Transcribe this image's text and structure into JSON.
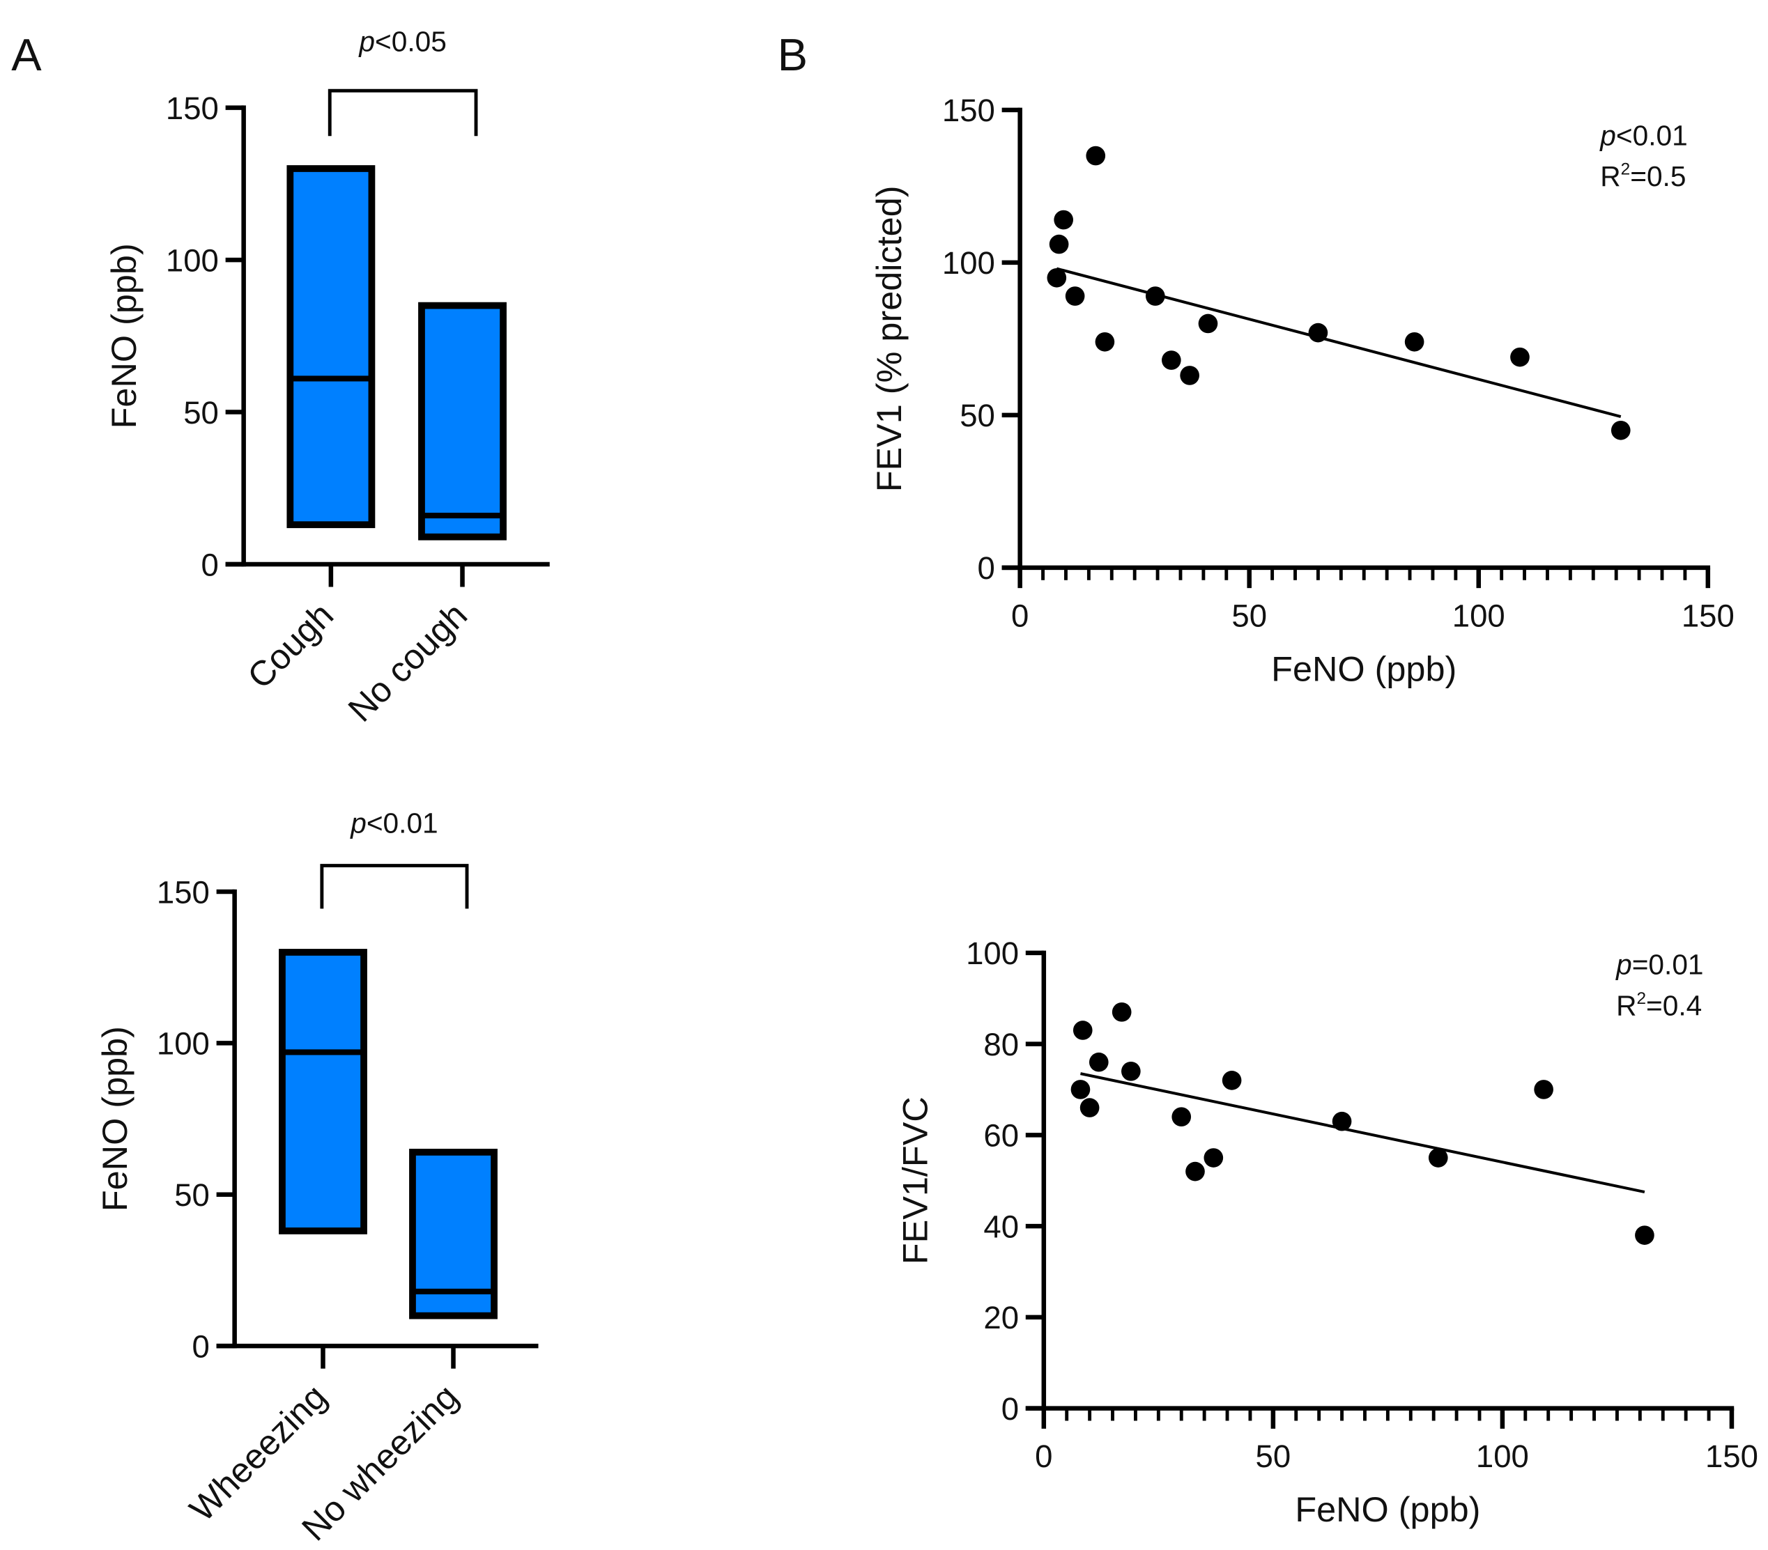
{
  "panel_labels": [
    "A",
    "B"
  ],
  "box_color": "#0080FF",
  "chart_data": [
    {
      "type": "bar",
      "subtype": "floating-box",
      "panel": "A",
      "ylabel": "FeNO (ppb)",
      "ylim": [
        0,
        150
      ],
      "yticks": [
        0,
        50,
        100,
        150
      ],
      "categories": [
        "Cough",
        "No cough"
      ],
      "boxes": [
        {
          "min": 13,
          "median": 61,
          "max": 130
        },
        {
          "min": 9,
          "median": 16,
          "max": 85
        }
      ],
      "annotation": {
        "p": "p",
        "rest": "<0.05"
      }
    },
    {
      "type": "bar",
      "subtype": "floating-box",
      "panel": "A",
      "ylabel": "FeNO (ppb)",
      "ylim": [
        0,
        150
      ],
      "yticks": [
        0,
        50,
        100,
        150
      ],
      "categories": [
        "Wheeezing",
        "No wheezing"
      ],
      "boxes": [
        {
          "min": 38,
          "median": 97,
          "max": 130
        },
        {
          "min": 10,
          "median": 18,
          "max": 64
        }
      ],
      "annotation": {
        "p": "p",
        "rest": "<0.01"
      }
    },
    {
      "type": "scatter",
      "panel": "B",
      "xlabel": "FeNO (ppb)",
      "ylabel": "FEV1 (% predicted)",
      "xlim": [
        0,
        150
      ],
      "ylim": [
        0,
        150
      ],
      "xticks": [
        0,
        50,
        100,
        150
      ],
      "yticks": [
        0,
        50,
        100,
        150
      ],
      "x": [
        8,
        8.5,
        9.5,
        16.5,
        12,
        18.5,
        29.5,
        33,
        37,
        41,
        65,
        86,
        109,
        131
      ],
      "y": [
        95,
        106,
        114,
        135,
        89,
        74,
        89,
        68,
        63,
        80,
        77,
        74,
        69,
        45
      ],
      "fit": {
        "x": [
          8,
          131
        ],
        "y": [
          98,
          49.5
        ]
      },
      "annotation": {
        "p": "p",
        "rest": "<0.01",
        "r2_label": "R",
        "r2_sup": "2",
        "r2_rest": "=0.5"
      }
    },
    {
      "type": "scatter",
      "panel": "B",
      "xlabel": "FeNO (ppb)",
      "ylabel": "FEV1/FVC",
      "xlim": [
        0,
        150
      ],
      "ylim": [
        0,
        100
      ],
      "xticks": [
        0,
        50,
        100,
        150
      ],
      "yticks": [
        0,
        20,
        40,
        60,
        80,
        100
      ],
      "x": [
        8,
        8.5,
        10,
        12,
        17,
        19,
        30,
        33,
        37,
        41,
        65,
        86,
        109,
        131
      ],
      "y": [
        70,
        83,
        66,
        76,
        87,
        74,
        64,
        52,
        55,
        72,
        63,
        55,
        70,
        38
      ],
      "fit": {
        "x": [
          8,
          131
        ],
        "y": [
          73.5,
          47.5
        ]
      },
      "annotation": {
        "p": "p",
        "rest": "=0.01",
        "r2_label": "R",
        "r2_sup": "2",
        "r2_rest": "=0.4"
      }
    }
  ]
}
